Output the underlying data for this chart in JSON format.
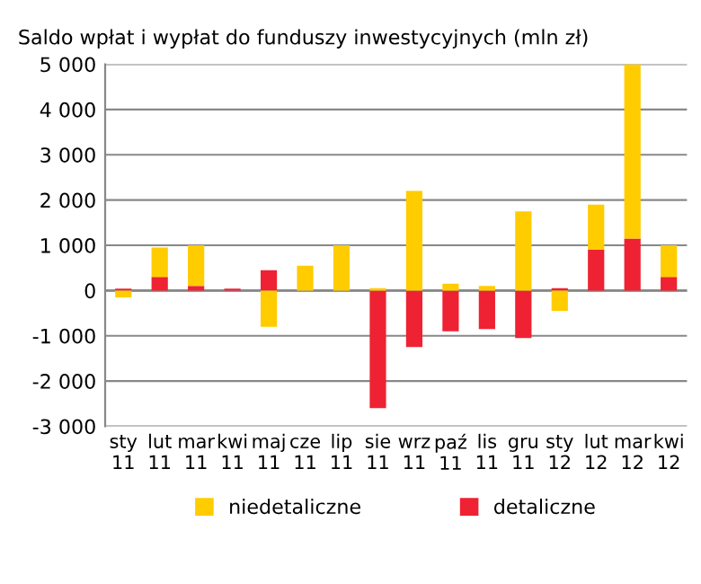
{
  "chart_data": {
    "type": "bar",
    "title": "Saldo wpłat i wypłat do funduszy inwestycyjnych (mln zł)",
    "categories": [
      "sty\n11",
      "lut\n11",
      "mar\n11",
      "kwi\n11",
      "maj\n11",
      "cze\n11",
      "lip\n11",
      "sie\n11",
      "wrz\n11",
      "paź\n11",
      "lis\n11",
      "gru\n11",
      "sty\n12",
      "lut\n12",
      "mar\n12",
      "kwi\n12"
    ],
    "series": [
      {
        "name": "detaliczne",
        "color": "#ee2233",
        "values": [
          40,
          300,
          100,
          40,
          450,
          0,
          0,
          -2600,
          -1250,
          -900,
          -850,
          -1050,
          50,
          900,
          1150,
          300
        ]
      },
      {
        "name": "niedetaliczne",
        "color": "#ffcc00",
        "values": [
          -150,
          650,
          900,
          0,
          -800,
          550,
          1000,
          50,
          2200,
          150,
          100,
          1750,
          -450,
          1000,
          3850,
          700
        ]
      }
    ],
    "stacked": true,
    "ylim": [
      -3000,
      5000
    ],
    "yticks": [
      {
        "value": -3000,
        "label": "-3 000"
      },
      {
        "value": -2000,
        "label": "-2 000"
      },
      {
        "value": -1000,
        "label": "-1 000"
      },
      0,
      {
        "value": 1000,
        "label": "1 000"
      },
      {
        "value": 2000,
        "label": "2 000"
      },
      {
        "value": 3000,
        "label": "3 000"
      },
      {
        "value": 4000,
        "label": "4 000"
      },
      {
        "value": 5000,
        "label": "5 000"
      }
    ],
    "grid": "y",
    "legend": "bottom"
  }
}
